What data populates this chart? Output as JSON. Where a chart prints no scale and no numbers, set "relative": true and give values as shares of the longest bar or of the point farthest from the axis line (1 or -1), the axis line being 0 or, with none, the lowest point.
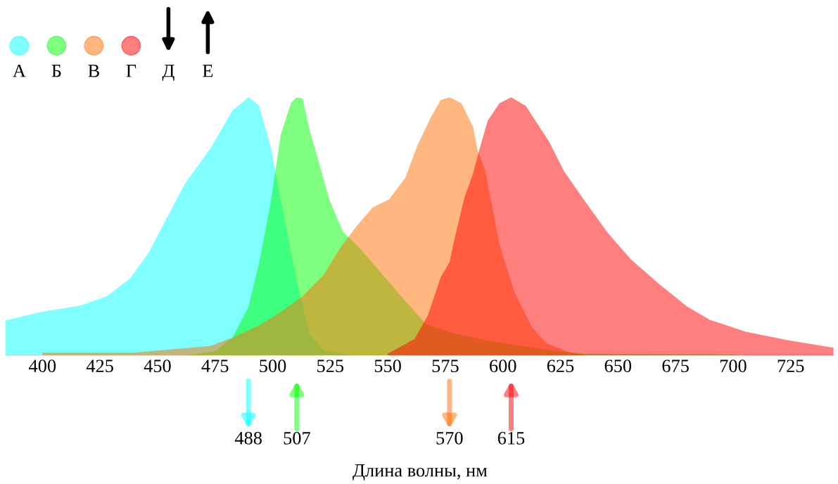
{
  "chart_data": {
    "type": "area",
    "relative": true,
    "xlabel": "Длина волны, нм",
    "legend": "top left",
    "tick_labels": "x",
    "xlim": [
      384,
      744
    ],
    "xticks": [
      400,
      425,
      450,
      475,
      500,
      525,
      550,
      575,
      600,
      625,
      650,
      675,
      700,
      725
    ],
    "series": [
      {
        "name": "А",
        "color": "#00ffff",
        "x": [
          384,
          399,
          416.5,
          428,
          438,
          446,
          454,
          462,
          473,
          482.5,
          489.5,
          494,
          499,
          503.5,
          508,
          512,
          516,
          522,
          534
        ],
        "values": [
          0.135,
          0.167,
          0.193,
          0.229,
          0.297,
          0.396,
          0.531,
          0.667,
          0.802,
          0.948,
          1.0,
          0.969,
          0.813,
          0.604,
          0.396,
          0.229,
          0.083,
          0.02,
          0.0
        ]
      },
      {
        "name": "Б",
        "color": "#00ff00",
        "x": [
          463.5,
          475,
          482.5,
          489.5,
          494,
          499,
          503.5,
          508,
          510.5,
          513,
          516,
          520,
          524.6,
          530.5,
          537.6,
          545.8,
          556.4,
          566.7,
          578,
          597,
          622.7,
          635.5,
          701
        ],
        "values": [
          0.0,
          0.016,
          0.068,
          0.188,
          0.354,
          0.583,
          0.854,
          0.979,
          1.0,
          0.995,
          0.875,
          0.75,
          0.604,
          0.479,
          0.417,
          0.333,
          0.223,
          0.12,
          0.086,
          0.051,
          0.017,
          0.006,
          0.003
        ]
      },
      {
        "name": "В",
        "color": "#ff6d00",
        "x": [
          400,
          440,
          473,
          482.5,
          494,
          503.5,
          513,
          522.3,
          529.4,
          536.4,
          543.5,
          550.5,
          557.6,
          562.8,
          568.6,
          573,
          576.8,
          582,
          584.5,
          587,
          589,
          592,
          594.6,
          598.5,
          605,
          612.6,
          619,
          629,
          635.5
        ],
        "values": [
          0.01,
          0.01,
          0.036,
          0.068,
          0.115,
          0.167,
          0.229,
          0.313,
          0.417,
          0.5,
          0.573,
          0.604,
          0.688,
          0.811,
          0.92,
          0.989,
          1.0,
          0.977,
          0.931,
          0.886,
          0.794,
          0.726,
          0.611,
          0.429,
          0.246,
          0.109,
          0.046,
          0.011,
          0.002
        ]
      },
      {
        "name": "Г",
        "color": "#ff0000",
        "x": [
          550,
          561.6,
          567.4,
          573,
          576.8,
          579.3,
          583.3,
          587,
          589.7,
          593.4,
          598.5,
          603.6,
          610,
          615,
          620,
          626.5,
          635.4,
          645.6,
          655.7,
          667.3,
          680,
          690,
          705.4,
          724.4,
          743.6
        ],
        "values": [
          0.006,
          0.063,
          0.154,
          0.303,
          0.36,
          0.463,
          0.611,
          0.703,
          0.794,
          0.909,
          0.977,
          1.0,
          0.966,
          0.897,
          0.829,
          0.714,
          0.6,
          0.474,
          0.371,
          0.28,
          0.189,
          0.137,
          0.091,
          0.057,
          0.029
        ]
      }
    ],
    "annotations": [
      "488",
      "507",
      "570",
      "615",
      "Д",
      "Е"
    ]
  }
}
